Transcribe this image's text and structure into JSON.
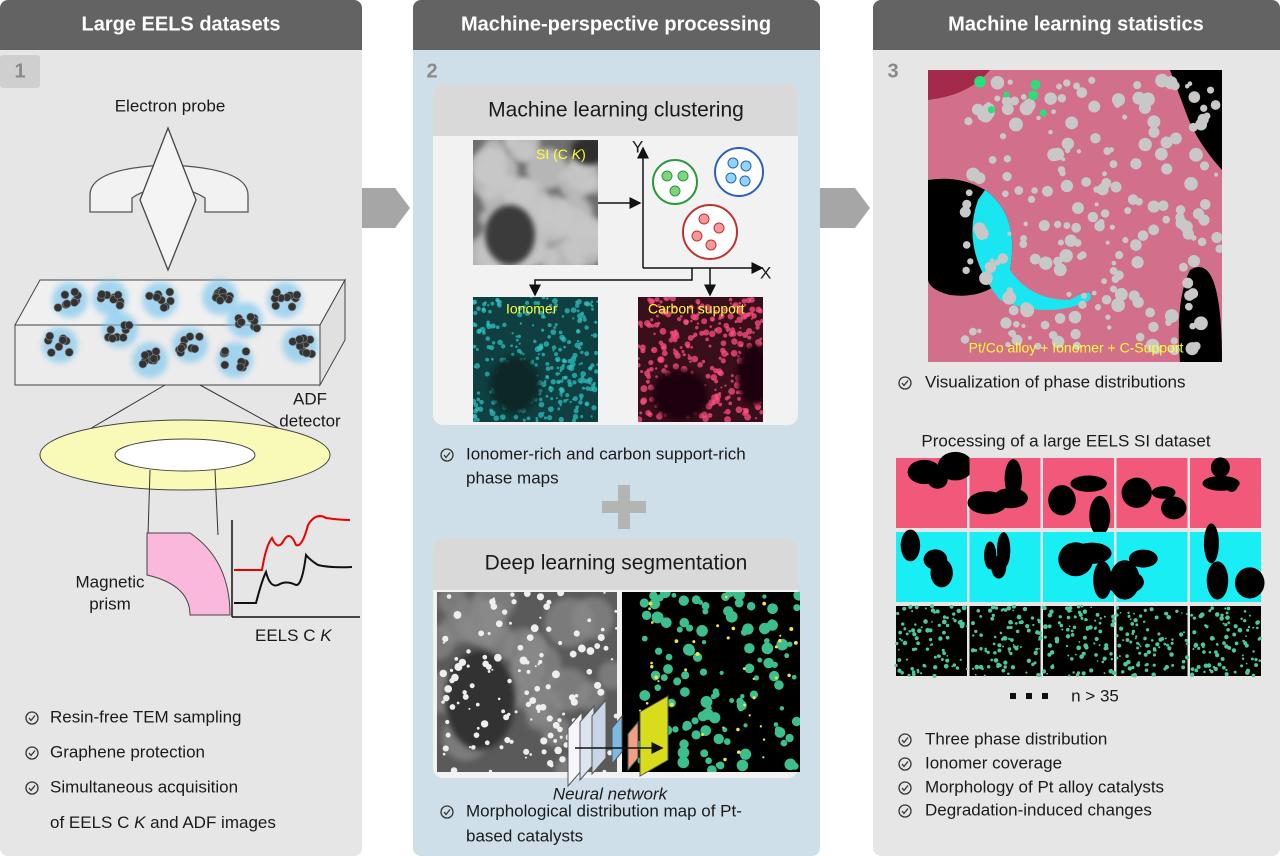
{
  "panel_1": {
    "title": "Large EELS datasets",
    "number": "1",
    "electron_probe": "Electron probe",
    "adf_detector": [
      "ADF",
      "detector"
    ],
    "magnetic_prism": [
      "Magnetic",
      "prism"
    ],
    "eels_label": [
      "EELS C ",
      "K"
    ],
    "bullets": [
      "Resin-free TEM sampling",
      "Graphene protection",
      "Simultaneous acquisition"
    ],
    "bullet_3_line_2": [
      "of EELS C ",
      "K",
      " and ADF images"
    ]
  },
  "panel_2": {
    "title": "Machine-perspective processing",
    "number": "2",
    "clustering": {
      "title": "Machine learning clustering",
      "si_label": [
        "SI (C ",
        "K",
        ")"
      ],
      "y_axis": "Y",
      "x_axis": "X",
      "ionomer": "Ionomer",
      "carbon_support": "Carbon support",
      "bullet": [
        "Ionomer-rich and carbon support-rich",
        "phase maps"
      ]
    },
    "segmentation": {
      "title": "Deep learning segmentation",
      "neural_network": "Neural network",
      "bullet": [
        "Morphological distribution map of Pt-",
        "based catalysts"
      ]
    }
  },
  "panel_3": {
    "title": "Machine learning statistics",
    "number": "3",
    "map_label": "Pt/Co alloy + Ionomer + C-Support",
    "bullet": "Visualization of phase distributions",
    "dataset_title": "Processing of a large EELS SI dataset",
    "count": "n > 35",
    "bullets": [
      "Three phase distribution",
      "Ionomer coverage",
      "Morphology of Pt alloy catalysts",
      "Degradation-induced changes"
    ]
  }
}
